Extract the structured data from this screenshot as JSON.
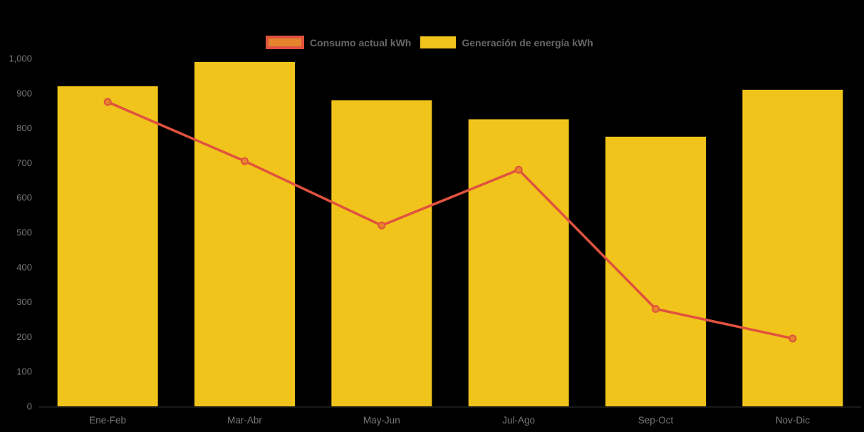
{
  "chart_data": {
    "type": "bar",
    "title": "",
    "categories": [
      "Ene-Feb",
      "Mar-Abr",
      "May-Jun",
      "Jul-Ago",
      "Sep-Oct",
      "Nov-Dic"
    ],
    "series": [
      {
        "name": "Consumo actual kWh",
        "type": "line",
        "values": [
          875,
          705,
          520,
          680,
          280,
          195
        ],
        "color": "#E0523E",
        "marker_color": "#E6842E"
      },
      {
        "name": "Generación de energía kWh",
        "type": "bar",
        "values": [
          920,
          990,
          880,
          825,
          775,
          910
        ],
        "color": "#F0C41B"
      }
    ],
    "xlabel": "",
    "ylabel": "",
    "ylim": [
      0,
      1000
    ],
    "ytick_values": [
      0,
      100,
      200,
      300,
      400,
      500,
      600,
      700,
      800,
      900,
      1000
    ],
    "ytick_labels": [
      "0",
      "100",
      "200",
      "300",
      "400",
      "500",
      "600",
      "700",
      "800",
      "900",
      "1,000"
    ],
    "grid": false,
    "legend_position": "top"
  },
  "colors": {
    "background": "#000000",
    "axis_label": "#787878",
    "legend_text": "#666666",
    "axis_line": "#333333"
  }
}
